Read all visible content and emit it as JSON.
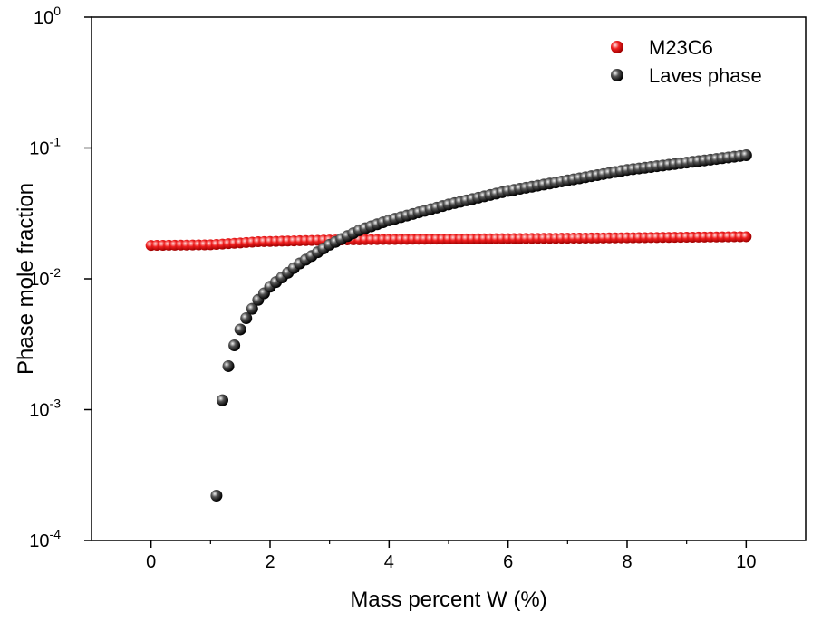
{
  "chart_data": {
    "type": "scatter",
    "xlabel": "Mass percent W (%)",
    "ylabel": "Phase mole fraction",
    "xlim": [
      -1,
      11
    ],
    "ylim": [
      0.0001,
      1
    ],
    "yscale": "log",
    "x_ticks": [
      0,
      2,
      4,
      6,
      8,
      10
    ],
    "x_tick_labels": [
      "0",
      "2",
      "4",
      "6",
      "8",
      "10"
    ],
    "y_ticks": [
      {
        "value": 1,
        "base": "10",
        "exp": "0"
      },
      {
        "value": 0.1,
        "base": "10",
        "exp": "-1"
      },
      {
        "value": 0.01,
        "base": "10",
        "exp": "-2"
      },
      {
        "value": 0.001,
        "base": "10",
        "exp": "-3"
      },
      {
        "value": 0.0001,
        "base": "10",
        "exp": "-4"
      }
    ],
    "grid": false,
    "legend_position": "top-right",
    "series": [
      {
        "name": "M23C6",
        "color": "#e01010",
        "x_start": 0,
        "x_end": 10,
        "x_step": 0.1,
        "points": [
          [
            0,
            0.018
          ],
          [
            1,
            0.0182
          ],
          [
            1.8,
            0.0192
          ],
          [
            2,
            0.0193
          ],
          [
            3,
            0.0198
          ],
          [
            4,
            0.02
          ],
          [
            6,
            0.0203
          ],
          [
            8,
            0.0206
          ],
          [
            10,
            0.021
          ]
        ]
      },
      {
        "name": "Laves phase",
        "color": "#111111",
        "x_start": 1.1,
        "x_end": 10,
        "x_step": 0.1,
        "points": [
          [
            1.1,
            0.00022
          ],
          [
            1.2,
            0.00118
          ],
          [
            1.3,
            0.00215
          ],
          [
            1.4,
            0.0031
          ],
          [
            1.5,
            0.0041
          ],
          [
            1.6,
            0.005
          ],
          [
            1.7,
            0.0059
          ],
          [
            1.8,
            0.0069
          ],
          [
            2.0,
            0.0087
          ],
          [
            2.5,
            0.0131
          ],
          [
            3.0,
            0.0182
          ],
          [
            3.5,
            0.0235
          ],
          [
            4.0,
            0.028
          ],
          [
            5.0,
            0.037
          ],
          [
            6.0,
            0.047
          ],
          [
            8.0,
            0.068
          ],
          [
            10.0,
            0.088
          ]
        ]
      }
    ]
  }
}
